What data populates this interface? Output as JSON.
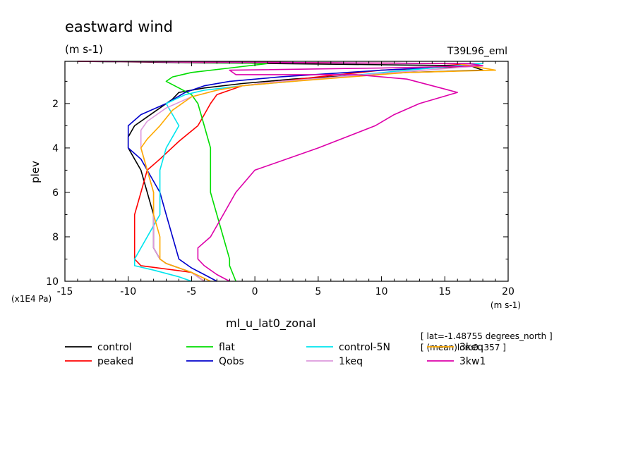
{
  "header": {
    "title": "eastward wind",
    "units": "(m s-1)",
    "experiment": "T39L96_eml"
  },
  "footer": {
    "variable_name": "ml_u_lat0_zonal",
    "lat_note": "[ lat=-1.48755 degrees_north ]",
    "lon_note": "[ (mean)lon:0..357 ]"
  },
  "chart_data": {
    "type": "line",
    "title": "eastward wind",
    "xlabel": "",
    "xunits": "(m s-1)",
    "ylabel": "plev",
    "yunits": "(x1E4 Pa)",
    "xlim": [
      -15,
      20
    ],
    "ylim": [
      10,
      0.1
    ],
    "y_inverted": true,
    "x_ticks": [
      -15,
      -10,
      -5,
      0,
      5,
      10,
      15,
      20
    ],
    "x_tick_labels": [
      "-15",
      "-10",
      "-5",
      "0",
      "5",
      "10",
      "15",
      "20"
    ],
    "y_ticks": [
      2,
      4,
      6,
      8,
      10
    ],
    "y_tick_labels": [
      "2",
      "4",
      "6",
      "8",
      "10"
    ],
    "legend_placement": "bottom",
    "series": [
      {
        "name": "control",
        "color": "#000000",
        "points": [
          [
            -14,
            0.1
          ],
          [
            17,
            0.3
          ],
          [
            18,
            0.5
          ],
          [
            12,
            0.6
          ],
          [
            3,
            0.9
          ],
          [
            -1,
            1.1
          ],
          [
            -4,
            1.3
          ],
          [
            -6,
            1.5
          ],
          [
            -6.5,
            1.8
          ],
          [
            -7.5,
            2.2
          ],
          [
            -8.5,
            2.6
          ],
          [
            -9.5,
            3.0
          ],
          [
            -10,
            3.5
          ],
          [
            -10,
            4.0
          ],
          [
            -9.5,
            4.5
          ],
          [
            -9,
            5.0
          ],
          [
            -8.5,
            6.0
          ],
          [
            -8,
            7.0
          ],
          [
            -8,
            8.0
          ],
          [
            -8,
            8.5
          ],
          [
            -7.5,
            9.0
          ],
          [
            -7,
            9.2
          ],
          [
            -5,
            9.6
          ],
          [
            -4,
            10
          ]
        ]
      },
      {
        "name": "peaked",
        "color": "#ff0000",
        "points": [
          [
            -14,
            0.1
          ],
          [
            15,
            0.2
          ],
          [
            18,
            0.3
          ],
          [
            10,
            0.5
          ],
          [
            5,
            0.8
          ],
          [
            -1,
            1.2
          ],
          [
            -3,
            1.6
          ],
          [
            -3.5,
            2.0
          ],
          [
            -4,
            2.5
          ],
          [
            -4.5,
            3.0
          ],
          [
            -6,
            3.7
          ],
          [
            -7.5,
            4.5
          ],
          [
            -8.5,
            5.0
          ],
          [
            -9,
            6.0
          ],
          [
            -9.5,
            7.0
          ],
          [
            -9.5,
            8.0
          ],
          [
            -9.5,
            9.0
          ],
          [
            -9,
            9.3
          ],
          [
            -5,
            9.6
          ],
          [
            -4,
            10
          ]
        ]
      },
      {
        "name": "flat",
        "color": "#00dd00",
        "points": [
          [
            -14,
            0.1
          ],
          [
            -7,
            0.1
          ],
          [
            1,
            0.2
          ],
          [
            -2,
            0.4
          ],
          [
            -5,
            0.6
          ],
          [
            -6.5,
            0.8
          ],
          [
            -7,
            1.0
          ],
          [
            -6,
            1.3
          ],
          [
            -5,
            1.6
          ],
          [
            -4.5,
            2.0
          ],
          [
            -4,
            3.0
          ],
          [
            -3.5,
            4.0
          ],
          [
            -3.5,
            5.0
          ],
          [
            -3.5,
            6.0
          ],
          [
            -3,
            7.0
          ],
          [
            -2.5,
            8.0
          ],
          [
            -2,
            9.0
          ],
          [
            -2,
            9.3
          ],
          [
            -1.5,
            10
          ]
        ]
      },
      {
        "name": "Qobs",
        "color": "#0000cc",
        "points": [
          [
            -14,
            0.1
          ],
          [
            16,
            0.2
          ],
          [
            17,
            0.3
          ],
          [
            10,
            0.5
          ],
          [
            2,
            0.8
          ],
          [
            -2,
            1.0
          ],
          [
            -4,
            1.2
          ],
          [
            -5.5,
            1.5
          ],
          [
            -7,
            2.0
          ],
          [
            -9,
            2.5
          ],
          [
            -10,
            3.0
          ],
          [
            -10,
            3.5
          ],
          [
            -10,
            4.0
          ],
          [
            -9,
            4.5
          ],
          [
            -8.5,
            5.0
          ],
          [
            -7.5,
            6.0
          ],
          [
            -7,
            7.0
          ],
          [
            -6.5,
            8.0
          ],
          [
            -6,
            9.0
          ],
          [
            -5,
            9.4
          ],
          [
            -4,
            9.7
          ],
          [
            -3,
            10
          ]
        ]
      },
      {
        "name": "control-5N",
        "color": "#00e5ee",
        "points": [
          [
            -14,
            0.1
          ],
          [
            15,
            0.2
          ],
          [
            18,
            0.2
          ],
          [
            12,
            0.5
          ],
          [
            3,
            1.0
          ],
          [
            -1,
            1.2
          ],
          [
            -4,
            1.4
          ],
          [
            -5.5,
            1.6
          ],
          [
            -7,
            2.0
          ],
          [
            -6.5,
            2.5
          ],
          [
            -6,
            3.0
          ],
          [
            -6.5,
            3.5
          ],
          [
            -7,
            4.0
          ],
          [
            -7.5,
            5.0
          ],
          [
            -7.5,
            6.0
          ],
          [
            -7.5,
            7.0
          ],
          [
            -8,
            7.5
          ],
          [
            -9,
            8.5
          ],
          [
            -9.5,
            9.0
          ],
          [
            -9.5,
            9.3
          ],
          [
            -8,
            9.5
          ],
          [
            -6,
            9.8
          ],
          [
            -5,
            10
          ]
        ]
      },
      {
        "name": "1keq",
        "color": "#dd99dd",
        "points": [
          [
            -14,
            0.1
          ],
          [
            16,
            0.2
          ],
          [
            18,
            0.3
          ],
          [
            11,
            0.6
          ],
          [
            2,
            1.0
          ],
          [
            -1,
            1.2
          ],
          [
            -3,
            1.4
          ],
          [
            -5,
            1.7
          ],
          [
            -7,
            2.2
          ],
          [
            -8.5,
            2.8
          ],
          [
            -9,
            3.2
          ],
          [
            -9,
            3.6
          ],
          [
            -9,
            4.0
          ],
          [
            -8.5,
            5.0
          ],
          [
            -8,
            6.0
          ],
          [
            -8,
            7.0
          ],
          [
            -8,
            8.0
          ],
          [
            -8,
            8.5
          ],
          [
            -7.5,
            9.0
          ],
          [
            -7,
            9.2
          ],
          [
            -5,
            9.6
          ],
          [
            -4,
            10
          ]
        ]
      },
      {
        "name": "3keq",
        "color": "#ffaa00",
        "points": [
          [
            -14,
            0.1
          ],
          [
            16,
            0.2
          ],
          [
            19,
            0.5
          ],
          [
            12,
            0.6
          ],
          [
            3,
            1.0
          ],
          [
            -1,
            1.2
          ],
          [
            -3,
            1.4
          ],
          [
            -5,
            1.7
          ],
          [
            -6.5,
            2.3
          ],
          [
            -7.5,
            3.0
          ],
          [
            -8.5,
            3.6
          ],
          [
            -9,
            4.0
          ],
          [
            -8.5,
            5.0
          ],
          [
            -8,
            6.0
          ],
          [
            -8,
            7.0
          ],
          [
            -7.5,
            8.0
          ],
          [
            -7.5,
            8.5
          ],
          [
            -7.5,
            9.0
          ],
          [
            -7,
            9.2
          ],
          [
            -5,
            9.6
          ],
          [
            -3.5,
            10
          ]
        ]
      },
      {
        "name": "3kw1",
        "color": "#dd00aa",
        "points": [
          [
            -14,
            0.1
          ],
          [
            17,
            0.2
          ],
          [
            18,
            0.3
          ],
          [
            10,
            0.4
          ],
          [
            -2,
            0.5
          ],
          [
            -1.5,
            0.7
          ],
          [
            8,
            0.7
          ],
          [
            12,
            0.9
          ],
          [
            16,
            1.5
          ],
          [
            13,
            2.0
          ],
          [
            11,
            2.5
          ],
          [
            9.5,
            3.0
          ],
          [
            5,
            4.0
          ],
          [
            0,
            5.0
          ],
          [
            -1.5,
            6.0
          ],
          [
            -2.5,
            7.0
          ],
          [
            -3.5,
            8.0
          ],
          [
            -4.5,
            8.5
          ],
          [
            -4.5,
            9.0
          ],
          [
            -4,
            9.3
          ],
          [
            -3,
            9.7
          ],
          [
            -2,
            10
          ]
        ]
      }
    ]
  }
}
